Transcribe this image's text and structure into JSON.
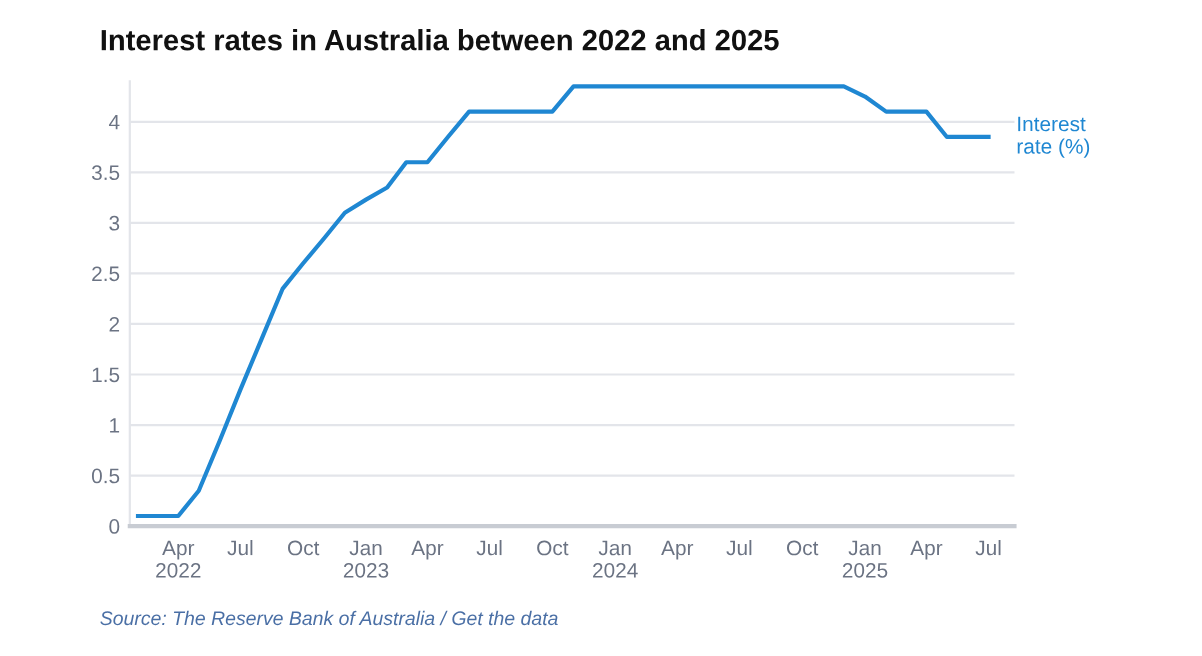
{
  "chart_data": {
    "type": "line",
    "title": "Interest rates in Australia between 2022 and 2025",
    "x": [
      "2022-02",
      "2022-03",
      "2022-04",
      "2022-05",
      "2022-06",
      "2022-07",
      "2022-08",
      "2022-09",
      "2022-10",
      "2022-11",
      "2022-12",
      "2023-01",
      "2023-02",
      "2023-03",
      "2023-04",
      "2023-05",
      "2023-06",
      "2023-07",
      "2023-08",
      "2023-09",
      "2023-10",
      "2023-11",
      "2023-12",
      "2024-01",
      "2024-02",
      "2024-03",
      "2024-04",
      "2024-05",
      "2024-06",
      "2024-07",
      "2024-08",
      "2024-09",
      "2024-10",
      "2024-11",
      "2024-12",
      "2025-01",
      "2025-02",
      "2025-03",
      "2025-04",
      "2025-05",
      "2025-06",
      "2025-07"
    ],
    "series": [
      {
        "name": "Interest\nrate (%)",
        "color": "#1f87d2",
        "values": [
          0.1,
          0.1,
          0.1,
          0.35,
          0.85,
          1.35,
          1.85,
          2.35,
          2.6,
          2.85,
          3.1,
          3.23,
          3.35,
          3.6,
          3.6,
          3.85,
          4.1,
          4.1,
          4.1,
          4.1,
          4.1,
          4.35,
          4.35,
          4.35,
          4.35,
          4.35,
          4.35,
          4.35,
          4.35,
          4.35,
          4.35,
          4.35,
          4.35,
          4.35,
          4.35,
          4.25,
          4.1,
          4.1,
          4.1,
          3.85,
          3.85,
          3.85
        ]
      }
    ],
    "xlim": [
      "2022-01-20",
      "2025-08-08"
    ],
    "xticks": [
      {
        "value": "2022-04",
        "label": "Apr\n2022"
      },
      {
        "value": "2022-07",
        "label": "Jul"
      },
      {
        "value": "2022-10",
        "label": "Oct"
      },
      {
        "value": "2023-01",
        "label": "Jan\n2023"
      },
      {
        "value": "2023-04",
        "label": "Apr"
      },
      {
        "value": "2023-07",
        "label": "Jul"
      },
      {
        "value": "2023-10",
        "label": "Oct"
      },
      {
        "value": "2024-01",
        "label": "Jan\n2024"
      },
      {
        "value": "2024-04",
        "label": "Apr"
      },
      {
        "value": "2024-07",
        "label": "Jul"
      },
      {
        "value": "2024-10",
        "label": "Oct"
      },
      {
        "value": "2025-01",
        "label": "Jan\n2025"
      },
      {
        "value": "2025-04",
        "label": "Apr"
      },
      {
        "value": "2025-07",
        "label": "Jul"
      }
    ],
    "ylim": [
      0,
      4.4
    ],
    "yticks": [
      0,
      0.5,
      1,
      1.5,
      2,
      2.5,
      3,
      3.5,
      4
    ],
    "grid": "y",
    "line_style": "solid",
    "annotations": [
      "Source: The Reserve Bank of Australia / Get the data"
    ]
  }
}
